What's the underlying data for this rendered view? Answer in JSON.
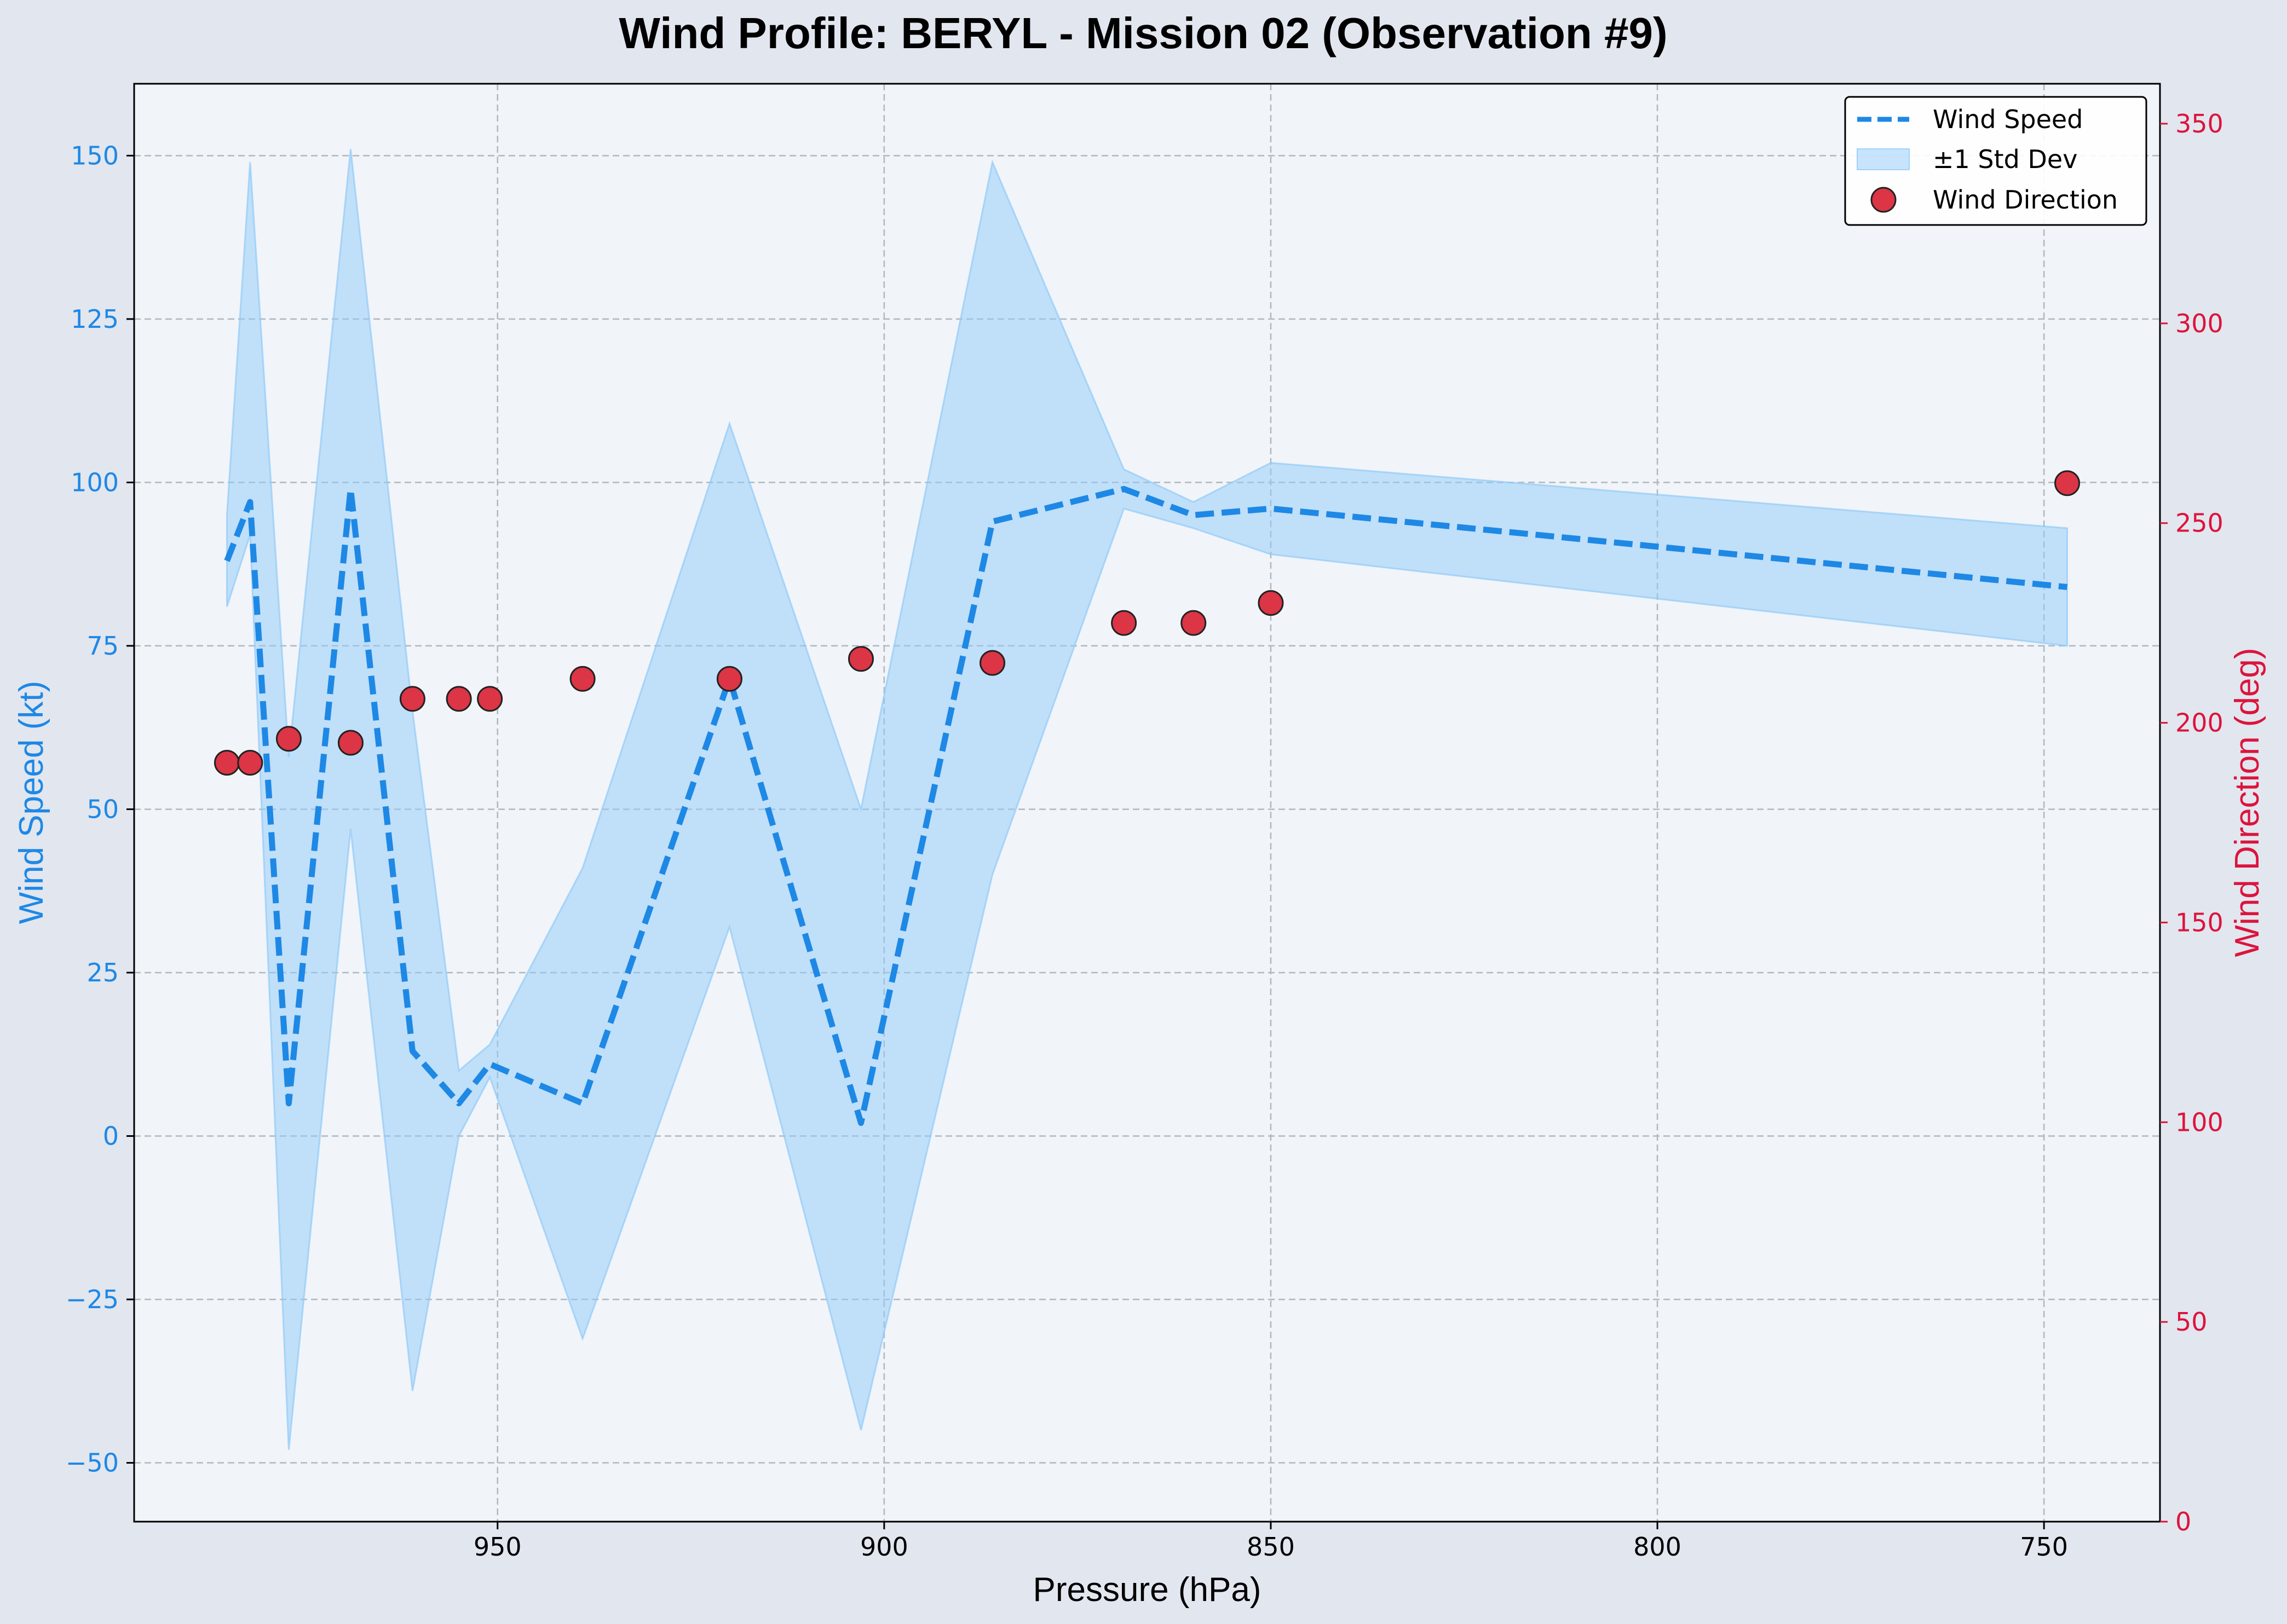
{
  "chart_data": {
    "type": "line",
    "title": "Wind Profile: BERYL - Mission 02 (Observation #9)",
    "xlabel": "Pressure (hPa)",
    "ylabel": "Wind Speed (kt)",
    "y2label": "Wind Direction (deg)",
    "x_inverted": true,
    "xlim": [
      997,
      735
    ],
    "ylim": [
      -59,
      161
    ],
    "y2lim": [
      0,
      360
    ],
    "x_ticks": [
      950,
      900,
      850,
      800,
      750
    ],
    "y_ticks": [
      -50,
      -25,
      0,
      25,
      50,
      75,
      100,
      125,
      150
    ],
    "y2_ticks": [
      0,
      50,
      100,
      150,
      200,
      250,
      300,
      350
    ],
    "grid": true,
    "legend_position": "top-right",
    "colors": {
      "wind_speed": "#1e88e5",
      "std_band": "#90caf9",
      "wind_direction": "#dc3545",
      "left_axis": "#1e88e5",
      "right_axis": "#dc143c",
      "plot_bg": "#f1f4f8",
      "figure_bg": "#e2e6ef",
      "grid": "#b0b8c0"
    },
    "series": [
      {
        "name": "Wind Speed",
        "kind": "line",
        "style": "dashed",
        "x": [
          985,
          982,
          977,
          969,
          961,
          955,
          951,
          939,
          920,
          903,
          886,
          869,
          860,
          850,
          747
        ],
        "values": [
          88,
          97,
          5,
          99,
          13,
          5,
          11,
          5,
          70,
          2,
          94,
          99,
          95,
          96,
          84
        ]
      },
      {
        "name": "±1 Std Dev",
        "kind": "band",
        "x": [
          985,
          982,
          977,
          969,
          961,
          955,
          951,
          939,
          920,
          903,
          886,
          869,
          860,
          850,
          747
        ],
        "lower": [
          81,
          92,
          -48,
          47,
          -39,
          0,
          9,
          -31,
          32,
          -45,
          40,
          96,
          93,
          89,
          75
        ],
        "upper": [
          95,
          149,
          58,
          151,
          65,
          10,
          14,
          41,
          109,
          50,
          149,
          102,
          97,
          103,
          93
        ]
      },
      {
        "name": "Wind Direction",
        "kind": "scatter",
        "axis": "right",
        "x": [
          985,
          982,
          977,
          969,
          961,
          955,
          951,
          939,
          920,
          903,
          886,
          869,
          860,
          850,
          747
        ],
        "values": [
          190,
          190,
          196,
          195,
          206,
          206,
          206,
          211,
          211,
          216,
          215,
          225,
          225,
          230,
          260
        ]
      }
    ]
  }
}
